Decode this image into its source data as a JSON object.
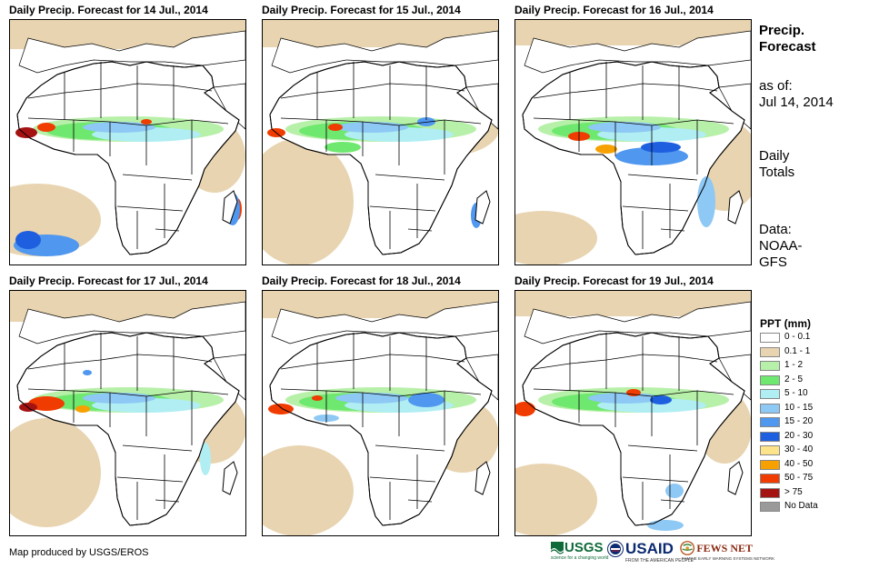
{
  "panels": [
    {
      "title": "Daily Precip. Forecast for 14 Jul., 2014"
    },
    {
      "title": "Daily Precip. Forecast for 15 Jul., 2014"
    },
    {
      "title": "Daily Precip. Forecast for 16 Jul., 2014"
    },
    {
      "title": "Daily Precip. Forecast for 17 Jul., 2014"
    },
    {
      "title": "Daily Precip. Forecast for 18 Jul., 2014"
    },
    {
      "title": "Daily Precip. Forecast for 19 Jul., 2014"
    }
  ],
  "side": {
    "heading_line1": "Precip.",
    "heading_line2": "Forecast",
    "asof_line1": "as of:",
    "asof_line2": "Jul 14, 2014",
    "totals_line1": "Daily",
    "totals_line2": "Totals",
    "data_line1": "Data:",
    "data_line2": "NOAA-",
    "data_line3": "GFS"
  },
  "legend": {
    "title": "PPT (mm)",
    "items": [
      {
        "label": "0 - 0.1",
        "color": "#ffffff"
      },
      {
        "label": "0.1 - 1",
        "color": "#e8d4b0"
      },
      {
        "label": "1 - 2",
        "color": "#b7f0a8"
      },
      {
        "label": "2 - 5",
        "color": "#6ee86e"
      },
      {
        "label": "5 - 10",
        "color": "#b0eef4"
      },
      {
        "label": "10 - 15",
        "color": "#8ec8f4"
      },
      {
        "label": "15 - 20",
        "color": "#4f97ef"
      },
      {
        "label": "20 - 30",
        "color": "#1e5fe0"
      },
      {
        "label": "30 - 40",
        "color": "#fde38a"
      },
      {
        "label": "40 - 50",
        "color": "#f7a100"
      },
      {
        "label": "50 - 75",
        "color": "#f03c00"
      },
      {
        "label": "> 75",
        "color": "#a51212"
      },
      {
        "label": "No Data",
        "color": "#9a9a9a"
      }
    ]
  },
  "credit": "Map produced by USGS/EROS",
  "logos": {
    "usgs": "USGS",
    "usgs_sub": "science for a changing world",
    "usaid": "USAID",
    "usaid_sub": "FROM THE AMERICAN PEOPLE",
    "fews": "FEWS NET",
    "fews_sub": "FAMINE EARLY WARNING SYSTEMS NETWORK"
  }
}
